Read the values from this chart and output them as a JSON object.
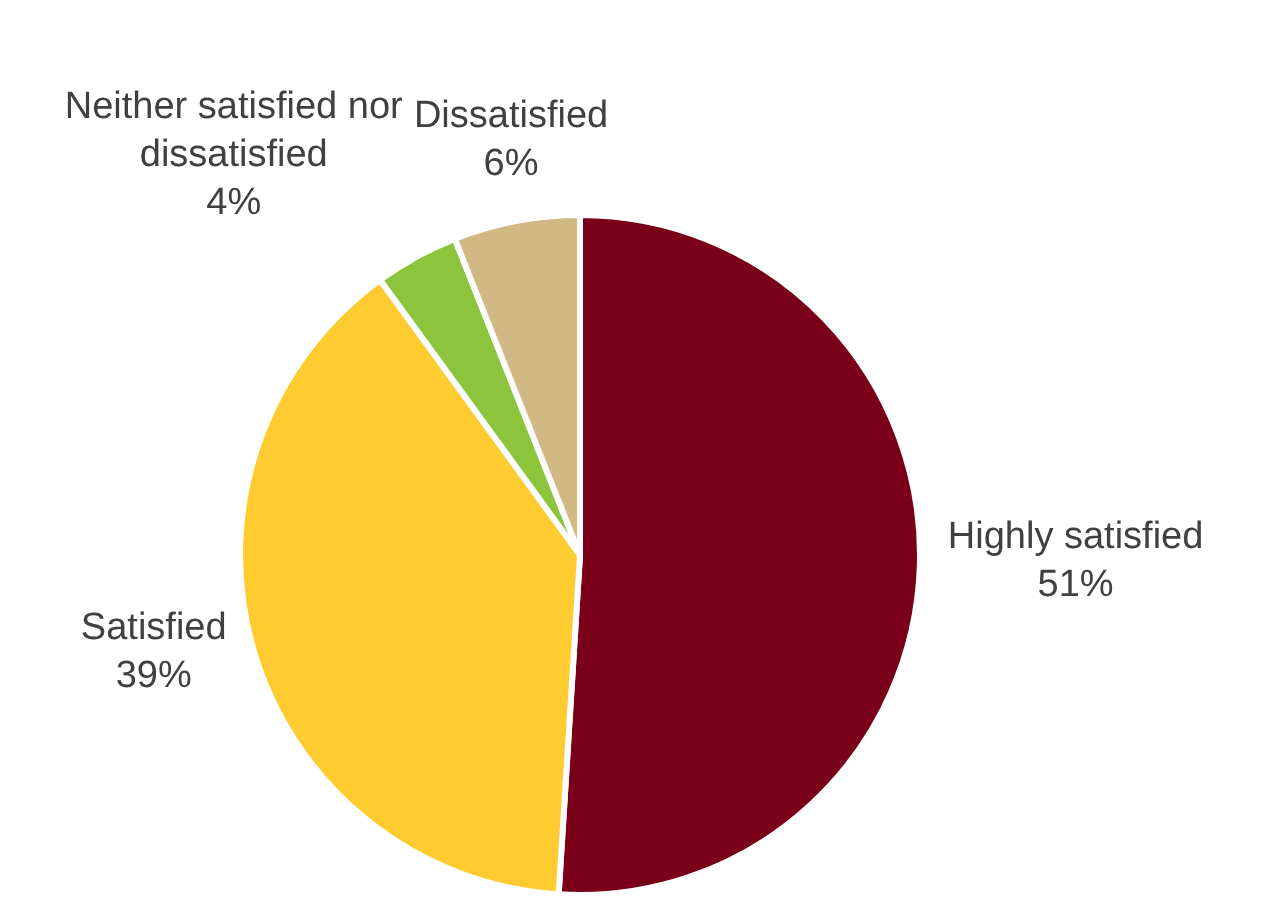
{
  "chart_data": {
    "type": "pie",
    "categories": [
      "Highly satisfied",
      "Satisfied",
      "Neither satisfied nor dissatisfied",
      "Dissatisfied"
    ],
    "values": [
      51,
      39,
      4,
      6
    ],
    "value_labels": [
      "51%",
      "39%",
      "4%",
      "6%"
    ],
    "colors": [
      "#7a0019",
      "#ffcb2f",
      "#8cc43c",
      "#d2b883"
    ],
    "legend": false
  }
}
